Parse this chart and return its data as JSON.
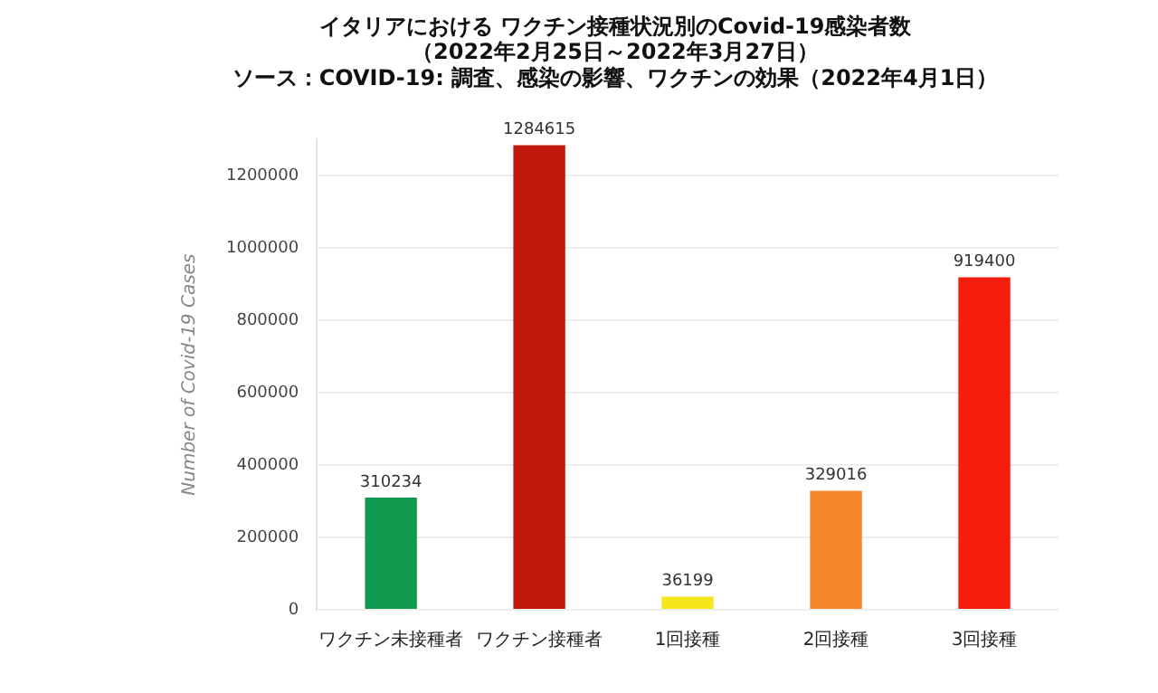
{
  "chart_data": {
    "type": "bar",
    "title": [
      "イタリアにおける ワクチン接種状況別のCovid-19感染者数",
      "（2022年2月25日～2022年3月27日）",
      "ソース：COVID-19: 調査、感染の影響、ワクチンの効果（2022年4月1日）"
    ],
    "ylabel": "Number of Covid-19 Cases",
    "categories": [
      "ワクチン未接種者",
      "ワクチン接種者",
      "1回接種",
      "2回接種",
      "3回接種"
    ],
    "values": [
      310234,
      1284615,
      36199,
      329016,
      919400
    ],
    "colors": [
      "#0f9a50",
      "#c01a0f",
      "#f5e71c",
      "#f5862c",
      "#f51e0c"
    ],
    "ylim": [
      0,
      1300000
    ],
    "yticks": [
      0,
      200000,
      400000,
      600000,
      800000,
      1000000,
      1200000
    ],
    "grid": "y",
    "data_labels": true,
    "legend": false
  }
}
